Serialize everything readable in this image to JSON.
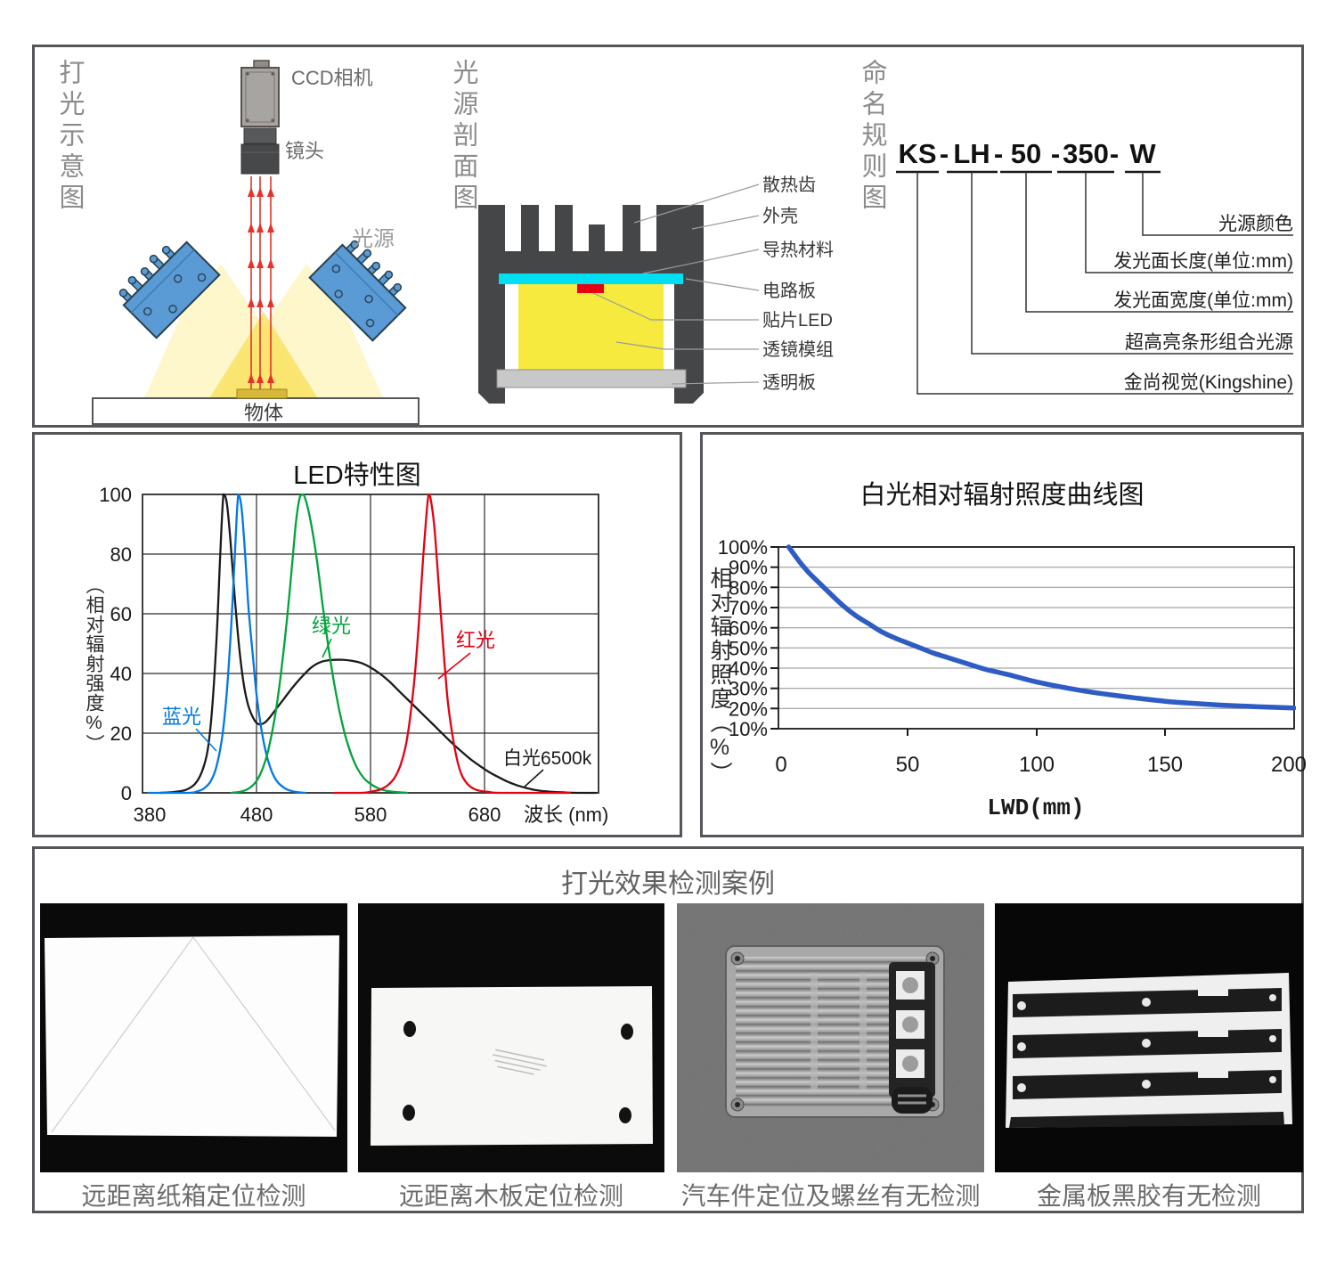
{
  "sections": {
    "schematic": {
      "title": "打光示意图",
      "camera_label": "CCD相机",
      "lens_label": "镜头",
      "light_label": "光源",
      "object_label": "物体"
    },
    "cross_section": {
      "title": "光源剖面图",
      "labels": [
        "散热齿",
        "外壳",
        "导热材料",
        "电路板",
        "贴片LED",
        "透镜模组",
        "透明板"
      ]
    },
    "naming": {
      "title": "命名规则图",
      "model_segments": [
        "KS",
        "LH",
        "50",
        "350",
        "W"
      ],
      "separator": "-",
      "labels": [
        "光源颜色",
        "发光面长度(单位:mm)",
        "发光面宽度(单位:mm)",
        "超高亮条形组合光源",
        "金尚视觉(Kingshine)"
      ]
    }
  },
  "chart_data": [
    {
      "id": "led",
      "type": "line",
      "title": "LED特性图",
      "ylabel": "（相对辐射强度%）",
      "xlabel": "波长 (nm)",
      "xlim": [
        380,
        780
      ],
      "ylim": [
        0,
        100
      ],
      "grid": true,
      "xticks": [
        "380",
        "480",
        "580",
        "680"
      ],
      "yticks": [
        "0",
        "20",
        "40",
        "60",
        "80",
        "100"
      ],
      "series": [
        {
          "key": "wht",
          "name": "白光6500k",
          "color": "#1a1a1a",
          "points": [
            [
              395,
              0
            ],
            [
              408,
              0.3
            ],
            [
              418,
              1
            ],
            [
              426,
              3
            ],
            [
              432,
              7
            ],
            [
              437,
              14
            ],
            [
              441,
              28
            ],
            [
              445,
              52
            ],
            [
              448,
              78
            ],
            [
              451,
              100
            ],
            [
              454,
              97
            ],
            [
              457,
              85
            ],
            [
              461,
              65
            ],
            [
              465,
              48
            ],
            [
              469,
              36
            ],
            [
              473,
              29
            ],
            [
              478,
              24.5
            ],
            [
              482,
              23
            ],
            [
              487,
              23.5
            ],
            [
              492,
              25.5
            ],
            [
              498,
              28.5
            ],
            [
              505,
              32
            ],
            [
              512,
              35.5
            ],
            [
              520,
              39
            ],
            [
              528,
              42
            ],
            [
              536,
              43.8
            ],
            [
              545,
              44.5
            ],
            [
              555,
              44.6
            ],
            [
              563,
              44.3
            ],
            [
              572,
              43.5
            ],
            [
              580,
              42
            ],
            [
              588,
              40
            ],
            [
              596,
              37.5
            ],
            [
              604,
              34.5
            ],
            [
              612,
              31.5
            ],
            [
              620,
              28.5
            ],
            [
              628,
              25.5
            ],
            [
              636,
              22.5
            ],
            [
              644,
              19.5
            ],
            [
              652,
              16.5
            ],
            [
              660,
              13.8
            ],
            [
              668,
              11.2
            ],
            [
              676,
              9
            ],
            [
              684,
              7
            ],
            [
              692,
              5.3
            ],
            [
              700,
              3.8
            ],
            [
              708,
              2.6
            ],
            [
              716,
              1.7
            ],
            [
              724,
              1
            ],
            [
              734,
              0.5
            ],
            [
              746,
              0.2
            ],
            [
              762,
              0
            ],
            [
              778,
              0
            ]
          ]
        },
        {
          "key": "blu",
          "name": "蓝光",
          "color": "#0078e7",
          "points": [
            [
              385,
              0
            ],
            [
              420,
              0
            ],
            [
              428,
              0.5
            ],
            [
              434,
              1.5
            ],
            [
              440,
              4
            ],
            [
              445,
              9
            ],
            [
              450,
              19
            ],
            [
              454,
              34
            ],
            [
              458,
              57
            ],
            [
              461,
              80
            ],
            [
              464,
              100
            ],
            [
              467,
              95
            ],
            [
              470,
              80
            ],
            [
              473,
              62
            ],
            [
              477,
              45
            ],
            [
              480,
              33
            ],
            [
              484,
              22
            ],
            [
              488,
              14
            ],
            [
              492,
              8.5
            ],
            [
              496,
              5
            ],
            [
              500,
              3
            ],
            [
              505,
              1.5
            ],
            [
              510,
              0.7
            ],
            [
              516,
              0.2
            ],
            [
              523,
              0
            ]
          ]
        },
        {
          "key": "grn",
          "name": "绿光",
          "color": "#00a43b",
          "points": [
            [
              458,
              0
            ],
            [
              466,
              0.4
            ],
            [
              472,
              1.2
            ],
            [
              478,
              3
            ],
            [
              483,
              6
            ],
            [
              488,
              11
            ],
            [
              493,
              19
            ],
            [
              498,
              30
            ],
            [
              503,
              45
            ],
            [
              508,
              63
            ],
            [
              512,
              80
            ],
            [
              515,
              92
            ],
            [
              518,
              99
            ],
            [
              521,
              100
            ],
            [
              524,
              97
            ],
            [
              528,
              90
            ],
            [
              533,
              78
            ],
            [
              538,
              63
            ],
            [
              543,
              49
            ],
            [
              548,
              37
            ],
            [
              553,
              27
            ],
            [
              558,
              19
            ],
            [
              563,
              13
            ],
            [
              568,
              8.5
            ],
            [
              574,
              5
            ],
            [
              580,
              3
            ],
            [
              587,
              1.5
            ],
            [
              594,
              0.7
            ],
            [
              602,
              0.3
            ],
            [
              612,
              0
            ]
          ]
        },
        {
          "key": "red",
          "name": "红光",
          "color": "#e60012",
          "points": [
            [
              548,
              0
            ],
            [
              572,
              0
            ],
            [
              582,
              0.5
            ],
            [
              589,
              1.2
            ],
            [
              595,
              2.5
            ],
            [
              601,
              5
            ],
            [
              606,
              9
            ],
            [
              611,
              16
            ],
            [
              615,
              26
            ],
            [
              619,
              40
            ],
            [
              623,
              60
            ],
            [
              626,
              78
            ],
            [
              629,
              93
            ],
            [
              631,
              100
            ],
            [
              633,
              98
            ],
            [
              636,
              89
            ],
            [
              639,
              74
            ],
            [
              642,
              58
            ],
            [
              645,
              43
            ],
            [
              648,
              30
            ],
            [
              652,
              19
            ],
            [
              656,
              11
            ],
            [
              660,
              6
            ],
            [
              665,
              3
            ],
            [
              670,
              1.5
            ],
            [
              676,
              0.7
            ],
            [
              684,
              0.3
            ],
            [
              695,
              0
            ],
            [
              755,
              0
            ]
          ]
        }
      ]
    },
    {
      "id": "white-irradiance",
      "type": "line",
      "title": "白光相对辐射照度曲线图",
      "ylabel": "相对辐射照度（%）",
      "xlabel": "LWD(mm)",
      "xlim": [
        0,
        200
      ],
      "ylim": [
        10,
        100
      ],
      "grid": true,
      "xticks": [
        "0",
        "50",
        "100",
        "150",
        "200"
      ],
      "yticks": [
        "100%",
        "90%",
        "80%",
        "70%",
        "60%",
        "50%",
        "40%",
        "30%",
        "20%",
        "10%"
      ],
      "color": "#2e5cc5",
      "points": [
        [
          4,
          100
        ],
        [
          8,
          93
        ],
        [
          12,
          87
        ],
        [
          16,
          82
        ],
        [
          20,
          77
        ],
        [
          25,
          71
        ],
        [
          30,
          66
        ],
        [
          35,
          62
        ],
        [
          40,
          58
        ],
        [
          45,
          55
        ],
        [
          50,
          52.5
        ],
        [
          55,
          50
        ],
        [
          60,
          47.5
        ],
        [
          65,
          45.5
        ],
        [
          70,
          43.5
        ],
        [
          75,
          41.5
        ],
        [
          80,
          39.5
        ],
        [
          85,
          38
        ],
        [
          90,
          36.5
        ],
        [
          95,
          34.8
        ],
        [
          100,
          33.2
        ],
        [
          110,
          30.6
        ],
        [
          120,
          28.4
        ],
        [
          130,
          26.6
        ],
        [
          140,
          25
        ],
        [
          150,
          23.6
        ],
        [
          160,
          22.6
        ],
        [
          170,
          21.8
        ],
        [
          180,
          21.2
        ],
        [
          190,
          20.7
        ],
        [
          200,
          20.3
        ]
      ]
    }
  ],
  "cases": {
    "title": "打光效果检测案例",
    "items": [
      {
        "caption": "远距离纸箱定位检测"
      },
      {
        "caption": "远距离木板定位检测"
      },
      {
        "caption": "汽车件定位及螺丝有无检测"
      },
      {
        "caption": "金属板黑胶有无检测"
      }
    ]
  }
}
